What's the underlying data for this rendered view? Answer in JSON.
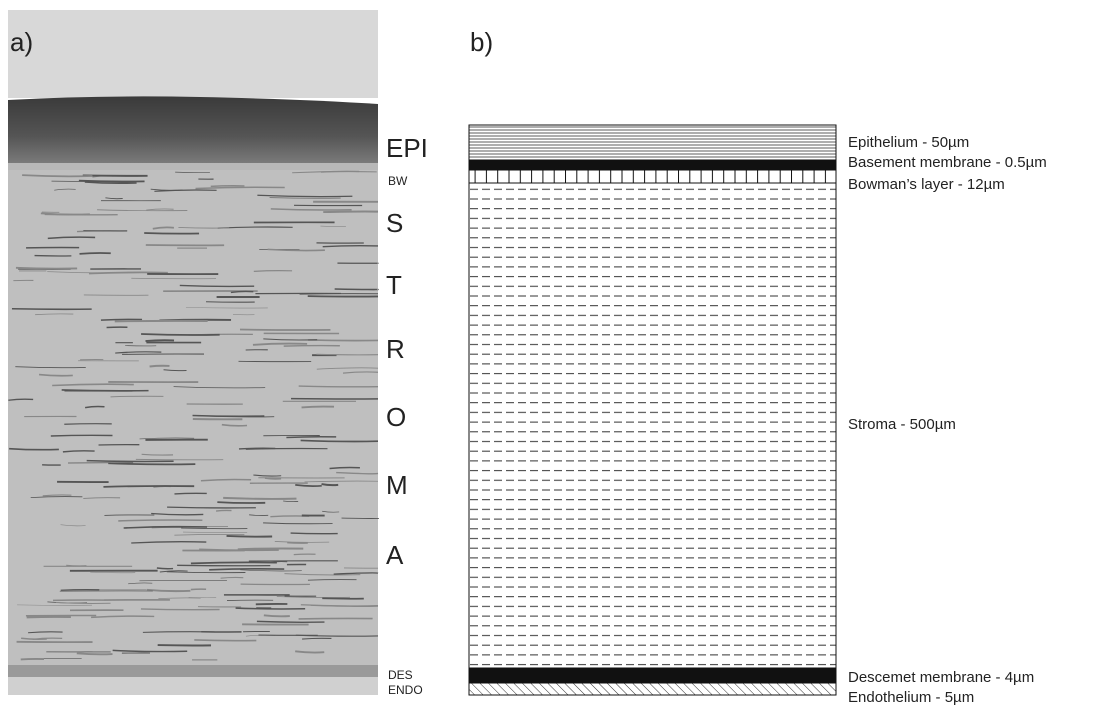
{
  "panels": [
    {
      "label": "a)",
      "layer_labels": [
        "EPI",
        "BW",
        "S",
        "T",
        "R",
        "O",
        "M",
        "A",
        "DES",
        "ENDO"
      ]
    },
    {
      "label": "b)",
      "layers": [
        "Epithelium - 50µm",
        "Basement membrane - 0.5µm",
        "Bowman’s layer - 12µm",
        "Stroma - 500µm",
        "Descemet membrane - 4µm",
        "Endothelium - 5µm"
      ]
    }
  ]
}
